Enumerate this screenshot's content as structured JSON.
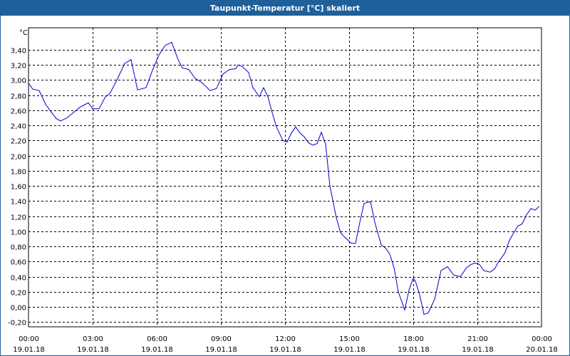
{
  "window": {
    "title": "Taupunkt-Temperatur [°C] skaliert"
  },
  "chart_data": {
    "type": "line",
    "title": "Taupunkt-Temperatur [°C] skaliert",
    "ylabel": "°C",
    "xlabel": "",
    "ylim": [
      -0.2,
      3.5
    ],
    "grid": true,
    "line_color": "#0000cc",
    "grid_color": "#000000",
    "y_ticks": [
      "3,40",
      "3,20",
      "3,00",
      "2,80",
      "2,60",
      "2,40",
      "2,20",
      "2,00",
      "1,80",
      "1,60",
      "1,40",
      "1,20",
      "1,00",
      "0,80",
      "0,60",
      "0,40",
      "0,20",
      "0,00",
      "-0,20"
    ],
    "y_tick_values": [
      3.4,
      3.2,
      3.0,
      2.8,
      2.6,
      2.4,
      2.2,
      2.0,
      1.8,
      1.6,
      1.4,
      1.2,
      1.0,
      0.8,
      0.6,
      0.4,
      0.2,
      0.0,
      -0.2
    ],
    "x_ticks": [
      {
        "time": "00:00",
        "date": "19.01.18",
        "hour": 0
      },
      {
        "time": "03:00",
        "date": "19.01.18",
        "hour": 3
      },
      {
        "time": "06:00",
        "date": "19.01.18",
        "hour": 6
      },
      {
        "time": "09:00",
        "date": "19.01.18",
        "hour": 9
      },
      {
        "time": "12:00",
        "date": "19.01.18",
        "hour": 12
      },
      {
        "time": "15:00",
        "date": "19.01.18",
        "hour": 15
      },
      {
        "time": "18:00",
        "date": "19.01.18",
        "hour": 18
      },
      {
        "time": "21:00",
        "date": "19.01.18",
        "hour": 21
      },
      {
        "time": "00:00",
        "date": "20.01.18",
        "hour": 24
      }
    ],
    "series": [
      {
        "x": [
          0,
          0.2,
          0.5,
          0.8,
          1.0,
          1.3,
          1.5,
          1.8,
          2.1,
          2.4,
          2.6,
          2.8,
          3.0,
          3.3,
          3.6,
          3.8,
          4.1,
          4.3,
          4.5,
          4.8,
          5.1,
          5.5,
          5.8,
          6.1,
          6.4,
          6.7,
          7.0,
          7.2,
          7.5,
          7.8,
          8.1,
          8.5,
          8.8,
          9.1,
          9.4,
          9.7,
          9.8,
          10.0,
          10.3,
          10.5,
          10.8,
          11.0,
          11.2,
          11.4,
          11.6,
          11.9,
          12.1,
          12.3,
          12.5,
          12.7,
          12.9,
          13.1,
          13.3,
          13.5,
          13.7,
          13.9,
          14.1,
          14.4,
          14.6,
          14.8,
          15.1,
          15.3,
          15.5,
          15.7,
          16.0,
          16.2,
          16.5,
          16.7,
          16.9,
          17.1,
          17.3,
          17.6,
          17.8,
          18.0,
          18.1,
          18.3,
          18.5,
          18.7,
          19.0,
          19.3,
          19.6,
          19.9,
          20.2,
          20.5,
          20.7,
          20.9,
          21.1,
          21.3,
          21.6,
          21.8,
          22.0,
          22.3,
          22.5,
          22.7,
          22.9,
          23.1,
          23.3,
          23.5,
          23.7,
          23.9
        ],
        "y": [
          2.96,
          2.88,
          2.86,
          2.68,
          2.6,
          2.49,
          2.46,
          2.5,
          2.57,
          2.64,
          2.67,
          2.7,
          2.62,
          2.62,
          2.78,
          2.82,
          2.98,
          3.1,
          3.22,
          3.27,
          2.87,
          2.9,
          3.13,
          3.33,
          3.46,
          3.5,
          3.27,
          3.16,
          3.14,
          3.02,
          2.97,
          2.86,
          2.89,
          3.08,
          3.14,
          3.15,
          3.2,
          3.18,
          3.1,
          2.9,
          2.78,
          2.9,
          2.78,
          2.57,
          2.38,
          2.2,
          2.18,
          2.3,
          2.38,
          2.3,
          2.25,
          2.17,
          2.14,
          2.16,
          2.31,
          2.15,
          1.6,
          1.18,
          0.98,
          0.92,
          0.84,
          0.84,
          1.12,
          1.37,
          1.39,
          1.12,
          0.82,
          0.78,
          0.7,
          0.52,
          0.2,
          -0.04,
          0.22,
          0.38,
          0.34,
          0.16,
          -0.1,
          -0.08,
          0.1,
          0.48,
          0.53,
          0.42,
          0.4,
          0.52,
          0.56,
          0.58,
          0.56,
          0.48,
          0.46,
          0.5,
          0.6,
          0.72,
          0.88,
          0.98,
          1.07,
          1.1,
          1.22,
          1.3,
          1.28,
          1.33
        ]
      }
    ]
  }
}
